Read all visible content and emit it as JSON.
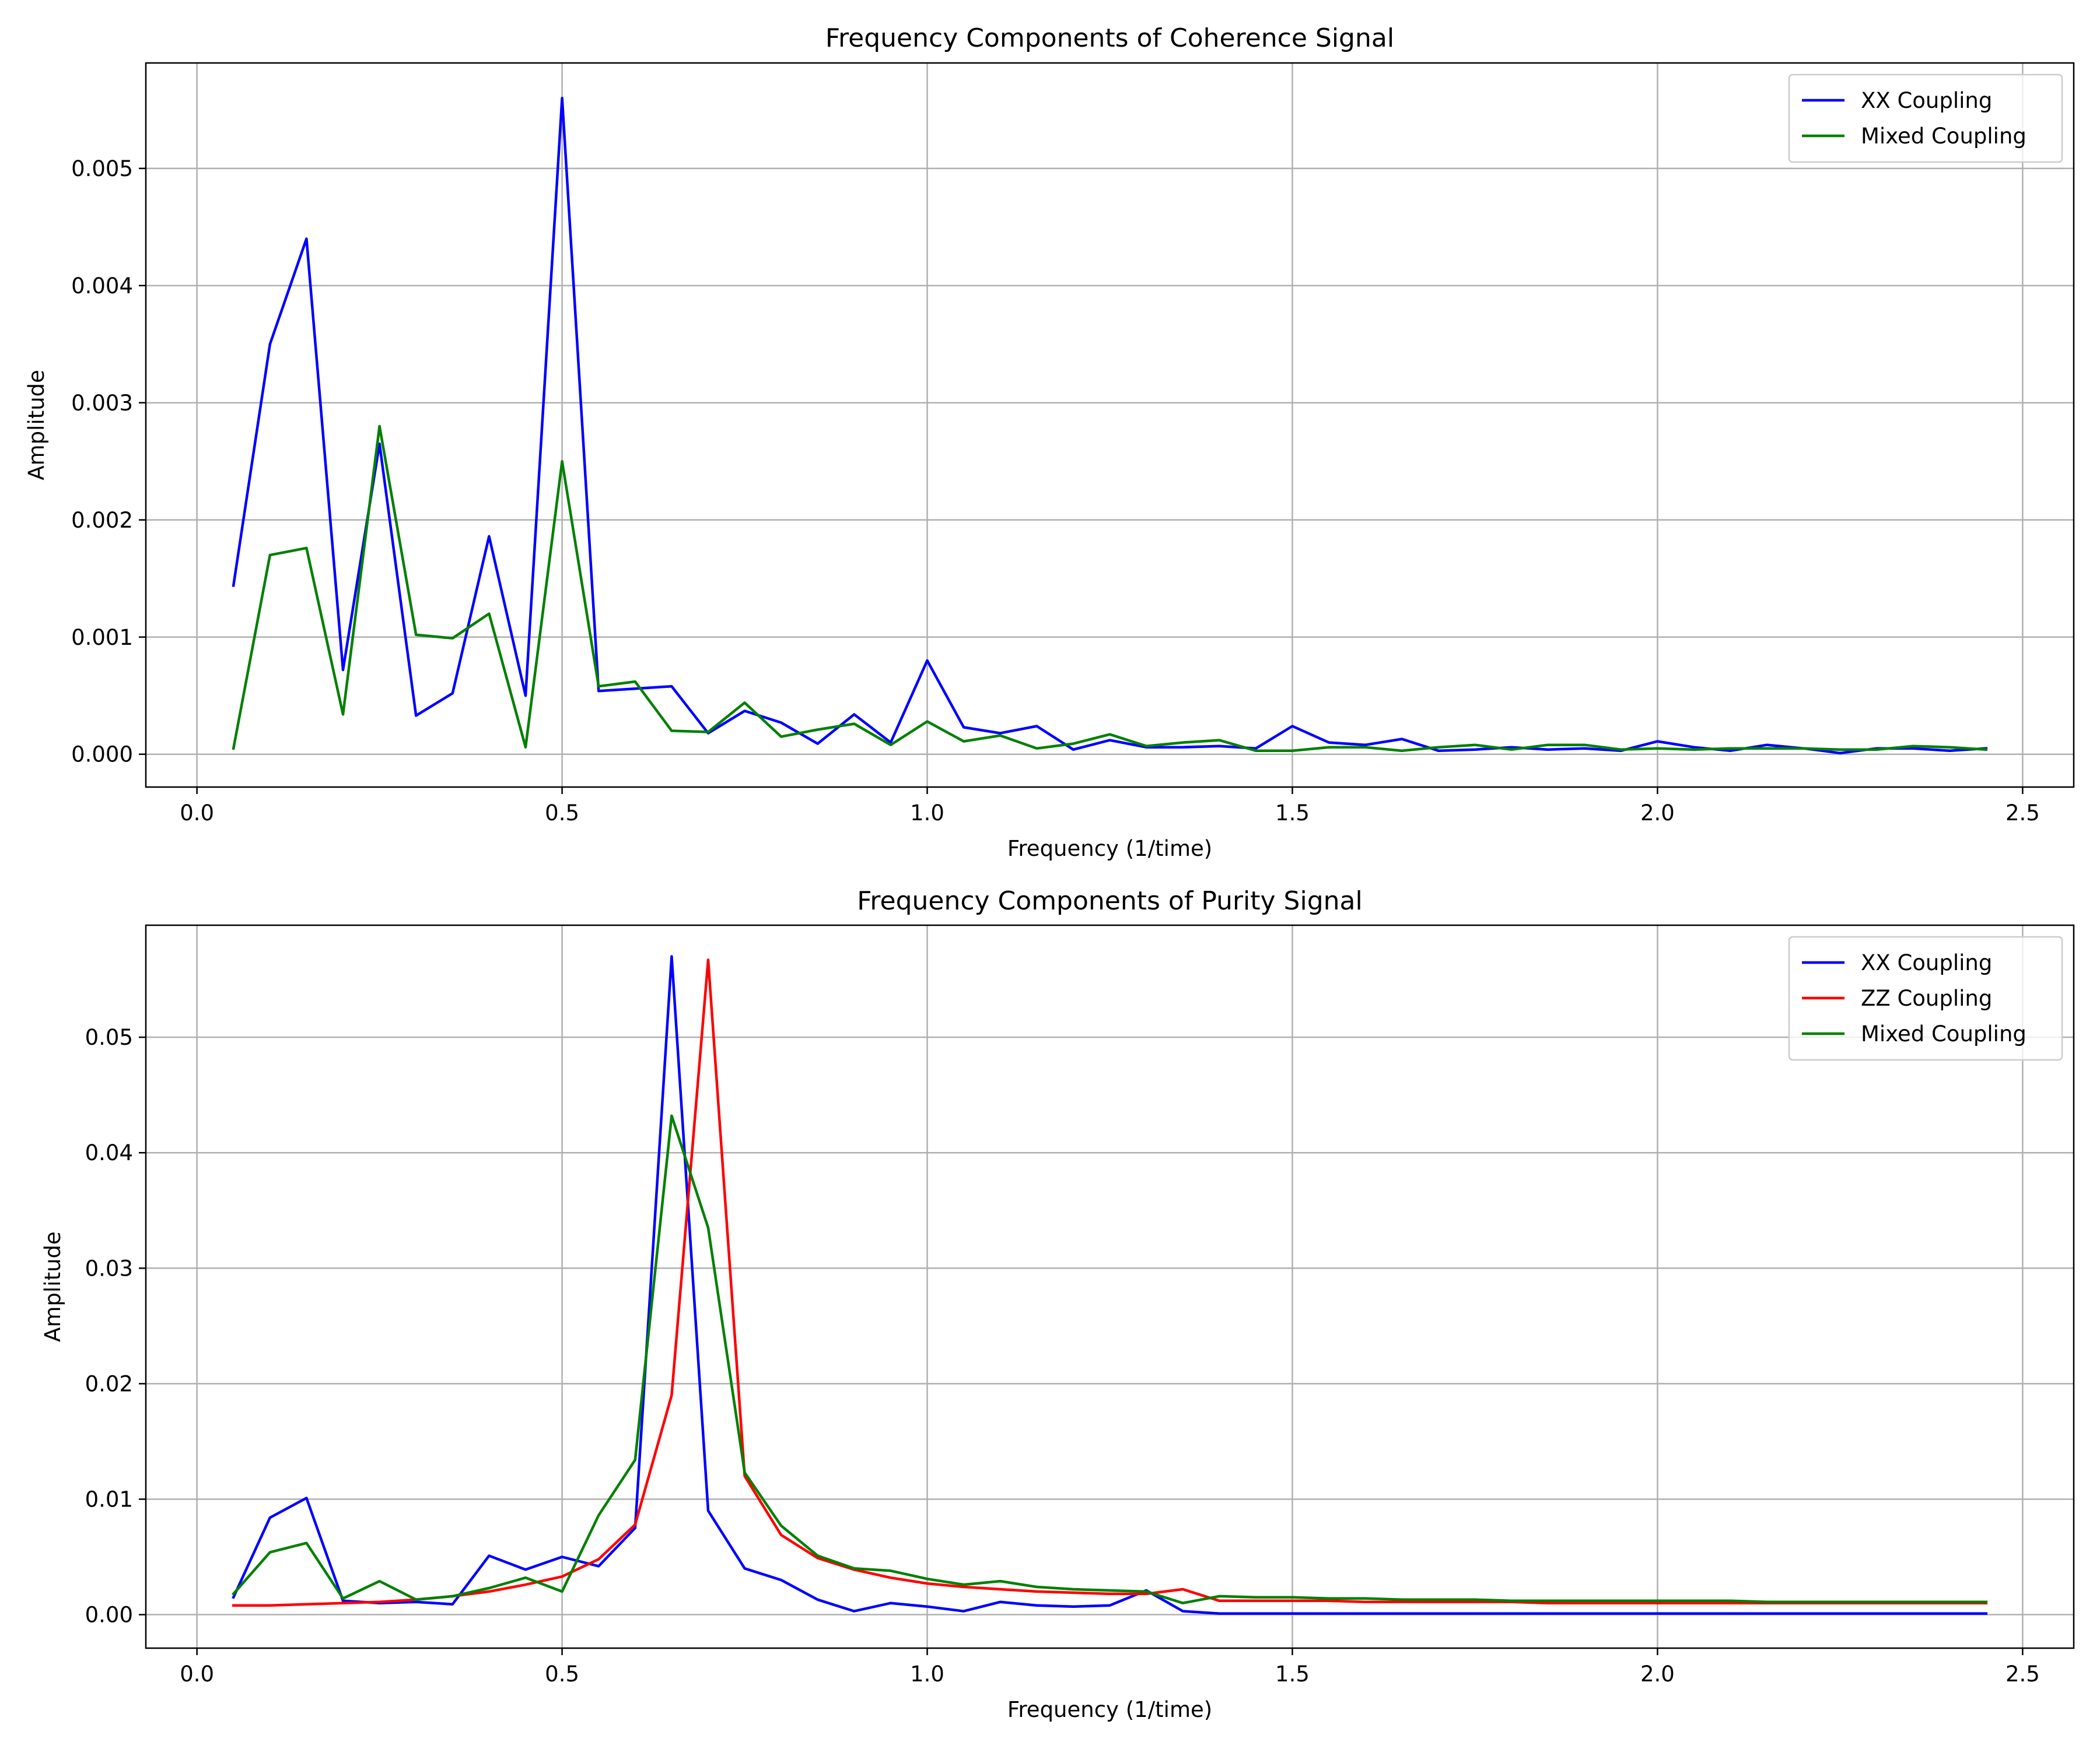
{
  "chart_data": [
    {
      "type": "line",
      "title": "Frequency Components of Coherence Signal",
      "xlabel": "Frequency (1/time)",
      "ylabel": "Amplitude",
      "xlim": [
        -0.07,
        2.57
      ],
      "ylim": [
        -0.00028,
        0.0059
      ],
      "xticks": [
        "0.0",
        "0.5",
        "1.0",
        "1.5",
        "2.0",
        "2.5"
      ],
      "yticks": [
        "0.000",
        "0.001",
        "0.002",
        "0.003",
        "0.004",
        "0.005"
      ],
      "grid": true,
      "legend_position": "upper right",
      "x": [
        0.05,
        0.1,
        0.15,
        0.2,
        0.25,
        0.3,
        0.35,
        0.4,
        0.45,
        0.5,
        0.55,
        0.6,
        0.65,
        0.7,
        0.75,
        0.8,
        0.85,
        0.9,
        0.95,
        1.0,
        1.05,
        1.1,
        1.15,
        1.2,
        1.25,
        1.3,
        1.35,
        1.4,
        1.45,
        1.5,
        1.55,
        1.6,
        1.65,
        1.7,
        1.75,
        1.8,
        1.85,
        1.9,
        1.95,
        2.0,
        2.05,
        2.1,
        2.15,
        2.2,
        2.25,
        2.3,
        2.35,
        2.4,
        2.45
      ],
      "series": [
        {
          "name": "XX Coupling",
          "color": "#0000ff",
          "values": [
            0.00144,
            0.0035,
            0.0044,
            0.00072,
            0.00265,
            0.00033,
            0.00052,
            0.00186,
            0.0005,
            0.0056,
            0.00054,
            0.00056,
            0.00058,
            0.00018,
            0.00037,
            0.00027,
            9e-05,
            0.00034,
            0.0001,
            0.0008,
            0.00023,
            0.00018,
            0.00024,
            4e-05,
            0.00012,
            6e-05,
            6e-05,
            7e-05,
            5e-05,
            0.00024,
            0.0001,
            8e-05,
            0.00013,
            3e-05,
            4e-05,
            6e-05,
            4e-05,
            5e-05,
            3e-05,
            0.00011,
            6e-05,
            3e-05,
            8e-05,
            5e-05,
            1e-05,
            5e-05,
            5e-05,
            3e-05,
            5e-05
          ]
        },
        {
          "name": "Mixed Coupling",
          "color": "#008000",
          "values": [
            5e-05,
            0.0017,
            0.00176,
            0.00034,
            0.0028,
            0.00102,
            0.00099,
            0.0012,
            6e-05,
            0.0025,
            0.00058,
            0.00062,
            0.0002,
            0.00019,
            0.00044,
            0.00015,
            0.00021,
            0.00026,
            8e-05,
            0.00028,
            0.00011,
            0.00016,
            5e-05,
            9e-05,
            0.00017,
            7e-05,
            0.0001,
            0.00012,
            3e-05,
            3e-05,
            6e-05,
            6e-05,
            3e-05,
            6e-05,
            8e-05,
            4e-05,
            8e-05,
            8e-05,
            4e-05,
            5e-05,
            4e-05,
            5e-05,
            5e-05,
            5e-05,
            4e-05,
            4e-05,
            7e-05,
            6e-05,
            4e-05
          ]
        }
      ]
    },
    {
      "type": "line",
      "title": "Frequency Components of Purity Signal",
      "xlabel": "Frequency (1/time)",
      "ylabel": "Amplitude",
      "xlim": [
        -0.07,
        2.57
      ],
      "ylim": [
        -0.0029,
        0.0597
      ],
      "xticks": [
        "0.0",
        "0.5",
        "1.0",
        "1.5",
        "2.0",
        "2.5"
      ],
      "yticks": [
        "0.00",
        "0.01",
        "0.02",
        "0.03",
        "0.04",
        "0.05"
      ],
      "grid": true,
      "legend_position": "upper right",
      "x": [
        0.05,
        0.1,
        0.15,
        0.2,
        0.25,
        0.3,
        0.35,
        0.4,
        0.45,
        0.5,
        0.55,
        0.6,
        0.65,
        0.7,
        0.75,
        0.8,
        0.85,
        0.9,
        0.95,
        1.0,
        1.05,
        1.1,
        1.15,
        1.2,
        1.25,
        1.3,
        1.35,
        1.4,
        1.45,
        1.5,
        1.55,
        1.6,
        1.65,
        1.7,
        1.75,
        1.8,
        1.85,
        1.9,
        1.95,
        2.0,
        2.05,
        2.1,
        2.15,
        2.2,
        2.25,
        2.3,
        2.35,
        2.4,
        2.45
      ],
      "series": [
        {
          "name": "XX Coupling",
          "color": "#0000ff",
          "values": [
            0.0015,
            0.0084,
            0.0101,
            0.0012,
            0.001,
            0.0011,
            0.0009,
            0.0051,
            0.0039,
            0.005,
            0.0042,
            0.0075,
            0.057,
            0.009,
            0.004,
            0.003,
            0.0013,
            0.0003,
            0.001,
            0.0007,
            0.0003,
            0.0011,
            0.0008,
            0.0007,
            0.0008,
            0.0021,
            0.0003,
            0.0001,
            0.0001,
            0.0001,
            0.0001,
            0.0001,
            0.0001,
            0.0001,
            0.0001,
            0.0001,
            0.0001,
            0.0001,
            0.0001,
            0.0001,
            0.0001,
            0.0001,
            0.0001,
            0.0001,
            0.0001,
            0.0001,
            0.0001,
            0.0001,
            0.0001
          ]
        },
        {
          "name": "ZZ Coupling",
          "color": "#ff0000",
          "values": [
            0.0008,
            0.0008,
            0.0009,
            0.001,
            0.0011,
            0.0013,
            0.0016,
            0.002,
            0.0026,
            0.0033,
            0.0048,
            0.0078,
            0.019,
            0.0567,
            0.012,
            0.0069,
            0.0049,
            0.0039,
            0.0032,
            0.0027,
            0.0024,
            0.0022,
            0.002,
            0.0019,
            0.0018,
            0.0018,
            0.0022,
            0.0012,
            0.0012,
            0.0012,
            0.0012,
            0.0011,
            0.0011,
            0.0011,
            0.0011,
            0.0011,
            0.001,
            0.001,
            0.001,
            0.001,
            0.001,
            0.001,
            0.001,
            0.001,
            0.001,
            0.001,
            0.001,
            0.001,
            0.001
          ]
        },
        {
          "name": "Mixed Coupling",
          "color": "#008000",
          "values": [
            0.0018,
            0.0054,
            0.0062,
            0.0014,
            0.0029,
            0.0013,
            0.0016,
            0.0023,
            0.0032,
            0.002,
            0.0086,
            0.0134,
            0.0432,
            0.0335,
            0.0123,
            0.0077,
            0.0051,
            0.004,
            0.0038,
            0.0031,
            0.0026,
            0.0029,
            0.0024,
            0.0022,
            0.0021,
            0.002,
            0.001,
            0.0016,
            0.0015,
            0.0015,
            0.0014,
            0.0014,
            0.0013,
            0.0013,
            0.0013,
            0.0012,
            0.0012,
            0.0012,
            0.0012,
            0.0012,
            0.0012,
            0.0012,
            0.0011,
            0.0011,
            0.0011,
            0.0011,
            0.0011,
            0.0011,
            0.0011
          ]
        }
      ]
    }
  ]
}
